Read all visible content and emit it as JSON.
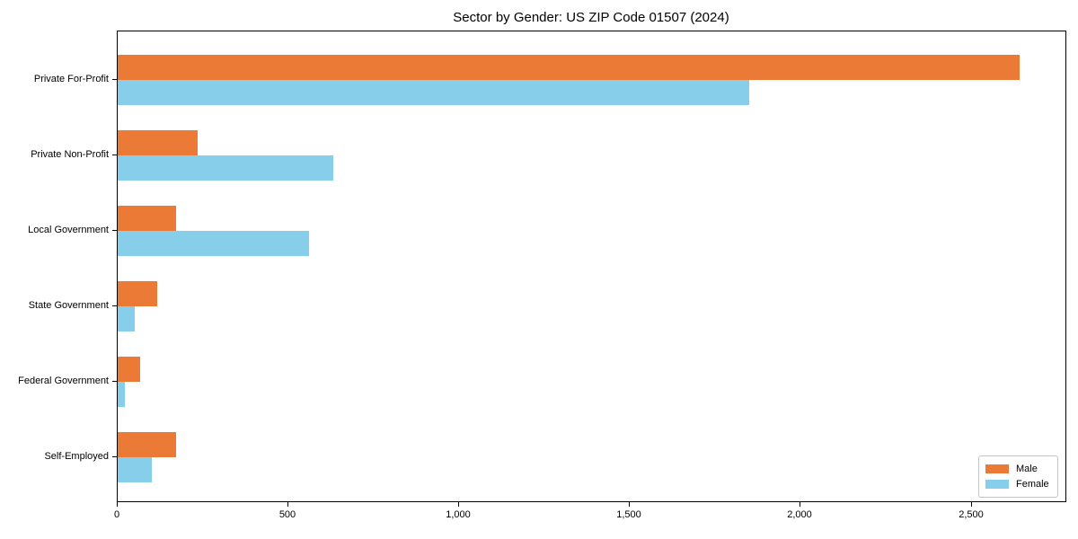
{
  "chart_data": {
    "type": "bar",
    "orientation": "horizontal",
    "title": "Sector by Gender: US ZIP Code 01507 (2024)",
    "categories": [
      "Private For-Profit",
      "Private Non-Profit",
      "Local Government",
      "State Government",
      "Federal Government",
      "Self-Employed"
    ],
    "series": [
      {
        "name": "Male",
        "color": "#EB7A36",
        "values": [
          2640,
          235,
          170,
          115,
          65,
          170
        ]
      },
      {
        "name": "Female",
        "color": "#87CEEB",
        "values": [
          1850,
          630,
          560,
          50,
          20,
          100
        ]
      }
    ],
    "xlabel": "",
    "ylabel": "",
    "xlim": [
      0,
      2780
    ],
    "x_ticks": [
      {
        "value": 0,
        "label": "0"
      },
      {
        "value": 500,
        "label": "500"
      },
      {
        "value": 1000,
        "label": "1,000"
      },
      {
        "value": 1500,
        "label": "1,500"
      },
      {
        "value": 2000,
        "label": "2,000"
      },
      {
        "value": 2500,
        "label": "2,500"
      }
    ],
    "grid": false,
    "legend": {
      "position": "lower right",
      "entries": [
        "Male",
        "Female"
      ]
    }
  },
  "colors": {
    "male": "#EB7A36",
    "female": "#87CEEB",
    "axis": "#000000",
    "background": "#ffffff",
    "legend_border": "#c4c4c4"
  }
}
